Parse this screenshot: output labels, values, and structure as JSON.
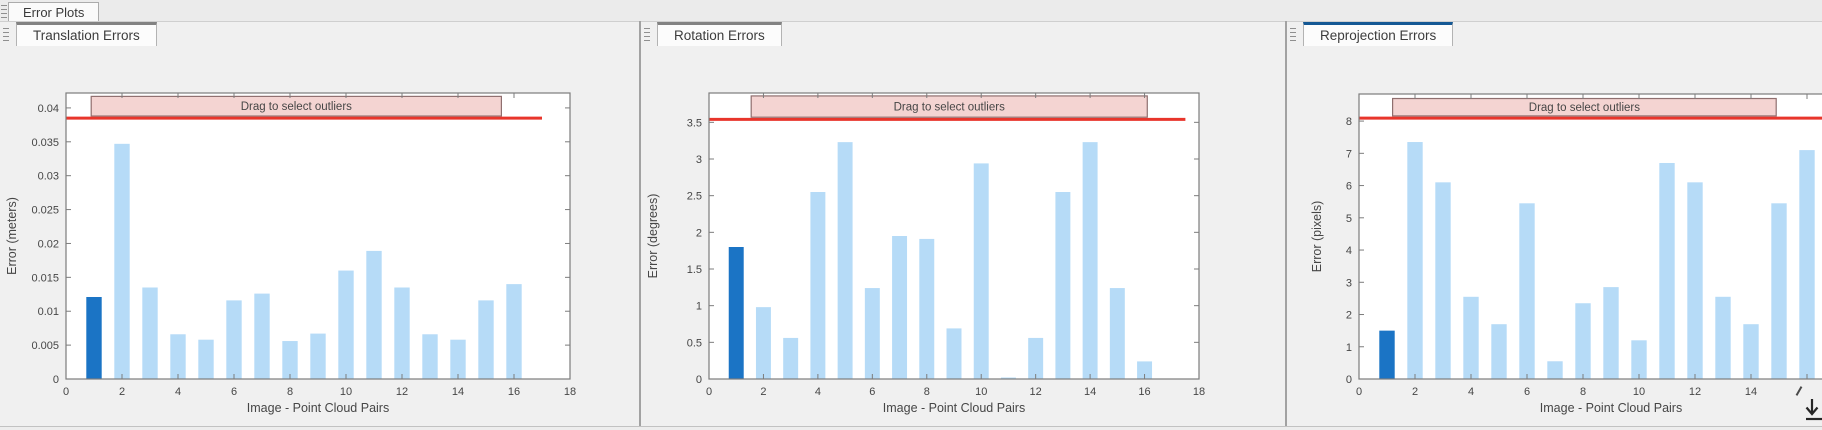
{
  "window": {
    "tab_label": "Error Plots"
  },
  "panels": [
    {
      "tab_label": "Translation Errors",
      "focused": false
    },
    {
      "tab_label": "Rotation Errors",
      "focused": false
    },
    {
      "tab_label": "Reprojection Errors",
      "focused": true
    }
  ],
  "colors": {
    "bar": "#b6dbf7",
    "bar_highlight": "#1b74c5",
    "threshold_line": "#e8352b",
    "band_fill": "#f4d4d2",
    "band_border": "#8f6f6f",
    "plot_border": "#7c7c7c",
    "focused_tab_accent": "#145894",
    "unfocused_tab_accent": "#828282"
  },
  "icons": {
    "panel_grip": "grip-lines-icon",
    "corner_action": "download-arrow-icon",
    "pointer": "cursor-mark"
  },
  "chart_data": [
    {
      "type": "bar",
      "title": "Translation Errors",
      "xlabel": "Image - Point Cloud Pairs",
      "ylabel": "Error (meters)",
      "x": [
        1,
        2,
        3,
        4,
        5,
        6,
        7,
        8,
        9,
        10,
        11,
        12,
        13,
        14,
        15,
        16
      ],
      "values": [
        0.0121,
        0.0347,
        0.0135,
        0.0066,
        0.0058,
        0.0116,
        0.0126,
        0.0056,
        0.0067,
        0.016,
        0.0189,
        0.0135,
        0.0066,
        0.0058,
        0.0116,
        0.014
      ],
      "highlight_index": 0,
      "xlim": [
        0,
        18
      ],
      "ylim": [
        0,
        0.0422
      ],
      "xticks": [
        0,
        2,
        4,
        6,
        8,
        10,
        12,
        14,
        16,
        18
      ],
      "xtick_labels": [
        "0",
        "2",
        "4",
        "6",
        "8",
        "10",
        "12",
        "14",
        "16",
        "18"
      ],
      "yticks": [
        0,
        0.005,
        0.01,
        0.015,
        0.02,
        0.025,
        0.03,
        0.035,
        0.04
      ],
      "ytick_labels": [
        "0",
        "0.005",
        "0.01",
        "0.015",
        "0.02",
        "0.025",
        "0.03",
        "0.035",
        "0.04"
      ],
      "threshold": {
        "value": 0.0385,
        "x_start": 0,
        "x_end": 17
      },
      "band": {
        "label": "Drag to select outliers",
        "x_start": 0.9,
        "x_end": 15.55,
        "y_bottom": 0.0388,
        "y_top": 0.0417
      },
      "legend": null,
      "grid": false
    },
    {
      "type": "bar",
      "title": "Rotation Errors",
      "xlabel": "Image - Point Cloud Pairs",
      "ylabel": "Error (degrees)",
      "x": [
        1,
        2,
        3,
        4,
        5,
        6,
        7,
        8,
        9,
        10,
        11,
        12,
        13,
        14,
        15,
        16
      ],
      "values": [
        1.8,
        0.98,
        0.56,
        2.55,
        3.23,
        1.24,
        1.95,
        1.91,
        0.69,
        2.94,
        0.02,
        0.56,
        2.55,
        3.23,
        1.24,
        0.24
      ],
      "highlight_index": 0,
      "xlim": [
        0,
        18
      ],
      "ylim": [
        0,
        3.9
      ],
      "xticks": [
        0,
        2,
        4,
        6,
        8,
        10,
        12,
        14,
        16,
        18
      ],
      "xtick_labels": [
        "0",
        "2",
        "4",
        "6",
        "8",
        "10",
        "12",
        "14",
        "16",
        "18"
      ],
      "yticks": [
        0,
        0.5,
        1,
        1.5,
        2,
        2.5,
        3,
        3.5
      ],
      "ytick_labels": [
        "0",
        "0.5",
        "1",
        "1.5",
        "2",
        "2.5",
        "3",
        "3.5"
      ],
      "threshold": {
        "value": 3.54,
        "x_start": 0,
        "x_end": 17.5
      },
      "band": {
        "label": "Drag to select outliers",
        "x_start": 1.55,
        "x_end": 16.1,
        "y_bottom": 3.57,
        "y_top": 3.86
      },
      "legend": null,
      "grid": false
    },
    {
      "type": "bar",
      "title": "Reprojection Errors",
      "xlabel": "Image - Point Cloud Pairs",
      "ylabel": "Error (pixels)",
      "x": [
        1,
        2,
        3,
        4,
        5,
        6,
        7,
        8,
        9,
        10,
        11,
        12,
        13,
        14,
        15,
        16
      ],
      "values": [
        1.5,
        7.35,
        6.1,
        2.55,
        1.7,
        5.45,
        0.55,
        2.35,
        2.85,
        1.2,
        6.7,
        6.1,
        2.55,
        1.7,
        5.45,
        7.1
      ],
      "highlight_index": 0,
      "xlim": [
        0,
        18
      ],
      "ylim": [
        0,
        8.84
      ],
      "xticks": [
        0,
        2,
        4,
        6,
        8,
        10,
        12,
        14,
        16,
        18
      ],
      "xtick_labels": [
        "0",
        "2",
        "4",
        "6",
        "8",
        "10",
        "12",
        "14",
        "",
        ""
      ],
      "yticks": [
        0,
        1,
        2,
        3,
        4,
        5,
        6,
        7,
        8
      ],
      "ytick_labels": [
        "0",
        "1",
        "2",
        "3",
        "4",
        "5",
        "6",
        "7",
        "8"
      ],
      "threshold": {
        "value": 8.09,
        "x_start": 0,
        "x_end": 18
      },
      "band": {
        "label": "Drag to select outliers",
        "x_start": 1.2,
        "x_end": 14.9,
        "y_bottom": 8.16,
        "y_top": 8.7
      },
      "legend": null,
      "grid": false
    }
  ]
}
